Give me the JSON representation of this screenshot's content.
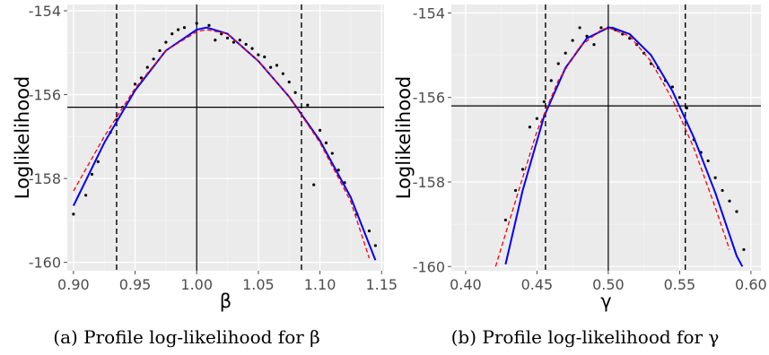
{
  "chart_data": [
    {
      "type": "scatter",
      "xlabel": "β",
      "ylabel": "Loglikelihood",
      "caption": "(a) Profile log-likelihood for β",
      "xlim": [
        0.895,
        1.152
      ],
      "ylim": [
        -160.2,
        -153.85
      ],
      "xticks": [
        0.9,
        0.95,
        1.0,
        1.05,
        1.1,
        1.15
      ],
      "xtick_labels": [
        "0.90",
        "0.95",
        "1.00",
        "1.05",
        "1.10",
        "1.15"
      ],
      "yticks": [
        -160,
        -158,
        -156,
        -154
      ],
      "ytick_labels": [
        "-160",
        "-158",
        "-156",
        "-154"
      ],
      "reference_lines": {
        "horizontal_y": -156.3,
        "vertical_solid_x": 1.0,
        "vertical_dashed_x": [
          0.935,
          1.085
        ]
      },
      "grid": true,
      "series": [
        {
          "kind": "points",
          "x": [
            0.9,
            0.91,
            0.915,
            0.92,
            0.93,
            0.935,
            0.94,
            0.95,
            0.955,
            0.96,
            0.965,
            0.97,
            0.975,
            0.98,
            0.985,
            0.99,
            1.0,
            1.01,
            1.015,
            1.02,
            1.025,
            1.03,
            1.035,
            1.04,
            1.045,
            1.05,
            1.055,
            1.06,
            1.065,
            1.07,
            1.075,
            1.08,
            1.09,
            1.095,
            1.1,
            1.105,
            1.11,
            1.115,
            1.12,
            1.13,
            1.14,
            1.145
          ],
          "y": [
            -158.85,
            -158.4,
            -157.9,
            -157.6,
            -156.9,
            -156.6,
            -156.3,
            -155.75,
            -155.6,
            -155.35,
            -155.15,
            -154.95,
            -154.75,
            -154.55,
            -154.45,
            -154.4,
            -154.3,
            -154.35,
            -154.7,
            -154.55,
            -154.65,
            -154.75,
            -154.7,
            -154.8,
            -154.9,
            -155.05,
            -155.1,
            -155.35,
            -155.3,
            -155.5,
            -155.7,
            -155.95,
            -156.25,
            -158.15,
            -156.85,
            -157.15,
            -157.4,
            -157.8,
            -158.1,
            -158.85,
            -159.25,
            -159.6
          ]
        },
        {
          "kind": "line",
          "style": "solid",
          "color": "#0000ff",
          "x": [
            0.9,
            0.925,
            0.95,
            0.975,
            1.0,
            1.008,
            1.025,
            1.05,
            1.075,
            1.1,
            1.125,
            1.145
          ],
          "y": [
            -158.65,
            -157.15,
            -155.9,
            -154.95,
            -154.45,
            -154.4,
            -154.55,
            -155.2,
            -156.05,
            -157.1,
            -158.45,
            -159.95
          ]
        },
        {
          "kind": "line",
          "style": "dashed",
          "color": "#ff0000",
          "x": [
            0.9,
            0.925,
            0.95,
            0.975,
            1.0,
            1.008,
            1.025,
            1.05,
            1.075,
            1.1,
            1.125,
            1.14
          ],
          "y": [
            -158.3,
            -157.0,
            -155.85,
            -154.95,
            -154.5,
            -154.45,
            -154.55,
            -155.2,
            -156.05,
            -157.15,
            -158.55,
            -159.9
          ]
        }
      ]
    },
    {
      "type": "scatter",
      "xlabel": "γ",
      "ylabel": "Loglikelihood",
      "caption": "(b) Profile log-likelihood for γ",
      "xlim": [
        0.39,
        0.607
      ],
      "ylim": [
        -160.1,
        -153.8
      ],
      "xticks": [
        0.4,
        0.45,
        0.5,
        0.55,
        0.6
      ],
      "xtick_labels": [
        "0.40",
        "0.45",
        "0.50",
        "0.55",
        "0.60"
      ],
      "yticks": [
        -160,
        -158,
        -156,
        -154
      ],
      "ytick_labels": [
        "-160",
        "-158",
        "-156",
        "-154"
      ],
      "reference_lines": {
        "horizontal_y": -156.2,
        "vertical_solid_x": 0.5,
        "vertical_dashed_x": [
          0.456,
          0.554
        ]
      },
      "grid": true,
      "series": [
        {
          "kind": "points",
          "x": [
            0.428,
            0.435,
            0.44,
            0.445,
            0.45,
            0.455,
            0.46,
            0.465,
            0.47,
            0.475,
            0.48,
            0.485,
            0.49,
            0.495,
            0.5,
            0.505,
            0.51,
            0.515,
            0.52,
            0.525,
            0.53,
            0.535,
            0.54,
            0.545,
            0.55,
            0.555,
            0.56,
            0.565,
            0.57,
            0.575,
            0.58,
            0.585,
            0.59,
            0.595
          ],
          "y": [
            -158.9,
            -158.2,
            -157.7,
            -156.7,
            -156.5,
            -156.1,
            -155.6,
            -155.2,
            -154.95,
            -154.65,
            -154.35,
            -154.55,
            -154.75,
            -154.35,
            -154.35,
            -154.4,
            -154.5,
            -154.6,
            -154.75,
            -154.95,
            -155.2,
            -155.3,
            -155.6,
            -155.75,
            -156.0,
            -156.25,
            -157.0,
            -157.3,
            -157.5,
            -157.9,
            -158.2,
            -158.45,
            -158.7,
            -159.6
          ]
        },
        {
          "kind": "line",
          "style": "solid",
          "color": "#0000ff",
          "x": [
            0.428,
            0.44,
            0.455,
            0.47,
            0.485,
            0.5,
            0.503,
            0.515,
            0.53,
            0.545,
            0.56,
            0.575,
            0.59,
            0.594
          ],
          "y": [
            -159.95,
            -158.2,
            -156.45,
            -155.3,
            -154.6,
            -154.35,
            -154.35,
            -154.5,
            -155.0,
            -155.85,
            -156.95,
            -158.25,
            -159.75,
            -160.0
          ]
        },
        {
          "kind": "line",
          "style": "dashed",
          "color": "#ff0000",
          "x": [
            0.421,
            0.435,
            0.45,
            0.465,
            0.48,
            0.495,
            0.5,
            0.515,
            0.53,
            0.545,
            0.56,
            0.575,
            0.585
          ],
          "y": [
            -160.0,
            -158.45,
            -156.8,
            -155.6,
            -154.8,
            -154.4,
            -154.35,
            -154.55,
            -155.15,
            -156.05,
            -157.2,
            -158.6,
            -159.6
          ]
        }
      ]
    }
  ]
}
